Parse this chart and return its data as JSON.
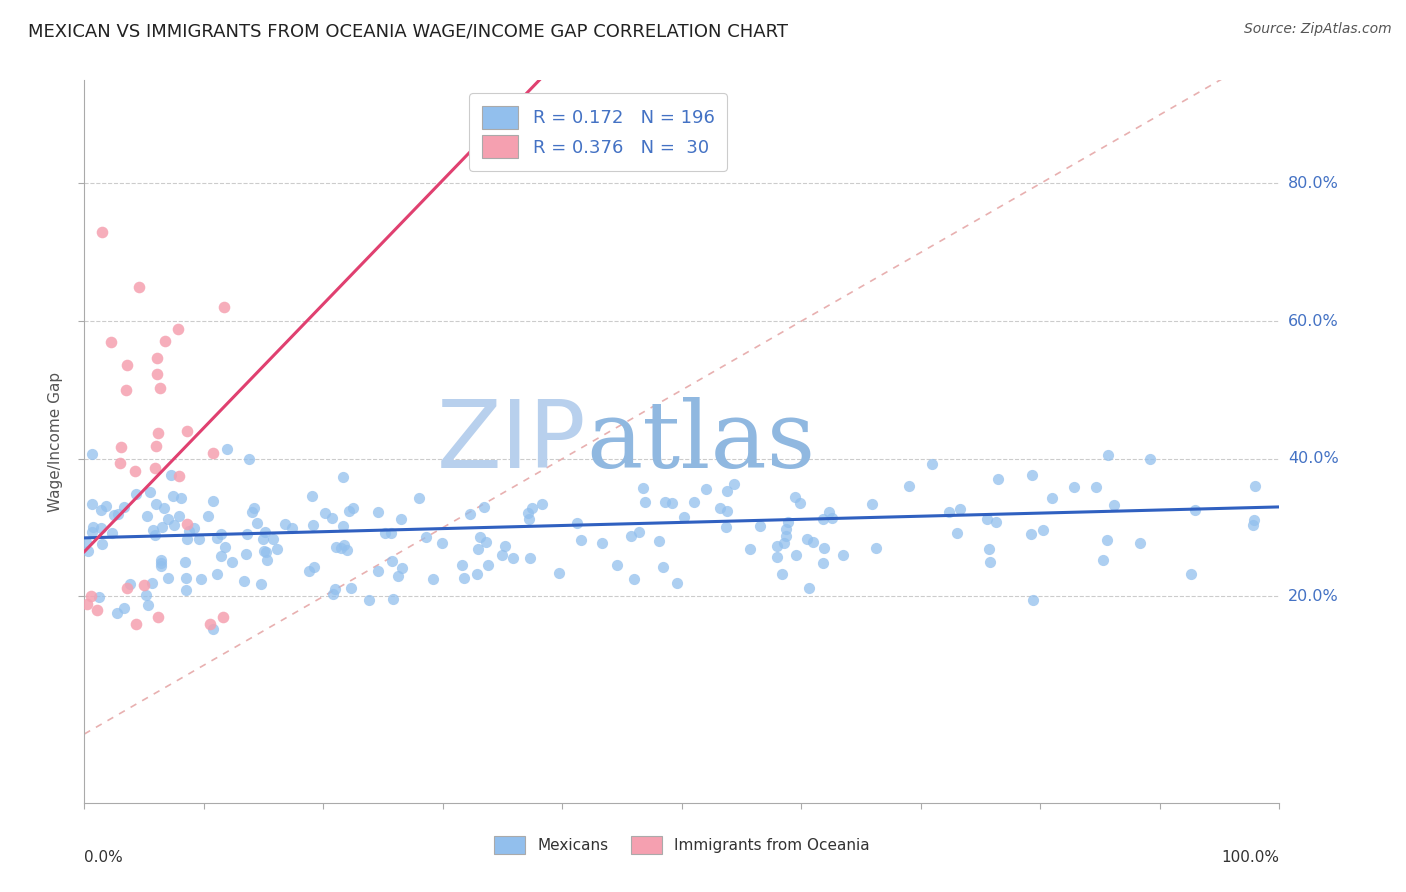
{
  "title": "MEXICAN VS IMMIGRANTS FROM OCEANIA WAGE/INCOME GAP CORRELATION CHART",
  "source": "Source: ZipAtlas.com",
  "ylabel": "Wage/Income Gap",
  "ytick_labels": [
    "20.0%",
    "40.0%",
    "60.0%",
    "80.0%"
  ],
  "ytick_values": [
    0.2,
    0.4,
    0.6,
    0.8
  ],
  "legend_r1": "R = 0.172",
  "legend_n1": "N = 196",
  "legend_r2": "R = 0.376",
  "legend_n2": "N =  30",
  "color_mexican": "#92BFED",
  "color_oceania": "#F5A0B0",
  "color_line_mexican": "#3060C0",
  "color_line_oceania": "#E04070",
  "watermark_zip": "ZIP",
  "watermark_atlas": "atlas",
  "watermark_color_zip": "#B8D0ED",
  "watermark_color_atlas": "#90B8E0",
  "title_fontsize": 13,
  "source_fontsize": 10,
  "ref_line_color": "#E8B0B0",
  "grid_color": "#CCCCCC",
  "axis_label_color": "#4472C4",
  "ylim_low": -0.1,
  "ylim_high": 0.95
}
